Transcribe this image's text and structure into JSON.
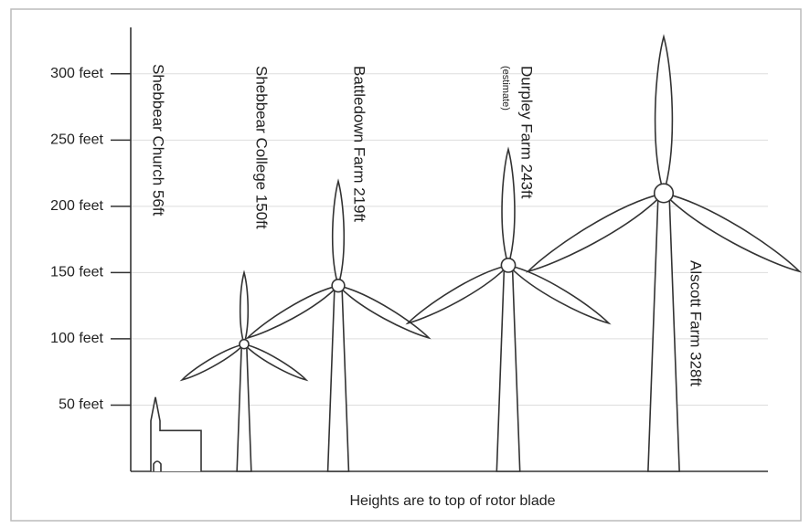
{
  "chart_data": {
    "type": "turbine",
    "categories": [
      "Shebbear Church 56ft",
      "Shebbear College 150ft",
      "Battledown Farm 219ft",
      "Durpley Farm 243ft",
      "Alscott Farm 328ft"
    ],
    "values": [
      56,
      150,
      219,
      243,
      328
    ],
    "annotation": "(estimate)",
    "footnote": "Heights are to top of rotor blade",
    "color": "#333333",
    "ylim": [
      0,
      335
    ],
    "yticks": [
      {
        "value": 50,
        "label": "50 feet"
      },
      {
        "value": 100,
        "label": "100 feet"
      },
      {
        "value": 150,
        "label": "150 feet"
      },
      {
        "value": 200,
        "label": "200 feet"
      },
      {
        "value": 250,
        "label": "250 feet"
      },
      {
        "value": 300,
        "label": "300 feet"
      }
    ],
    "grid": true
  }
}
